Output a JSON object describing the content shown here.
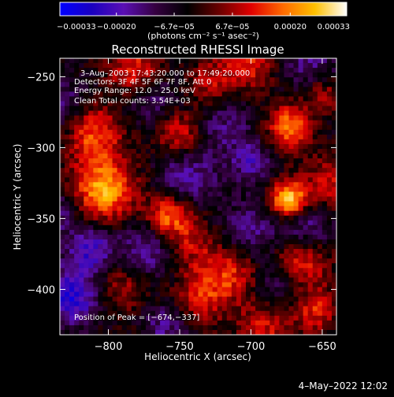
{
  "colors": {
    "background": "#000000",
    "text": "#ffffff",
    "colorbar_stops": [
      "#0000ff",
      "#1a00c0",
      "#5a0fb4",
      "#350040",
      "#000000",
      "#6a0000",
      "#e00000",
      "#ff6a00",
      "#ffc000",
      "#ffffff"
    ]
  },
  "chart_data": {
    "type": "heatmap",
    "title": "Reconstructed RHESSI Image",
    "xlabel": "Heliocentric X (arcsec)",
    "ylabel": "Heliocentric Y (arcsec)",
    "xlim": [
      -834,
      -640
    ],
    "ylim": [
      -432,
      -237
    ],
    "xticks": [
      -800,
      -750,
      -700,
      -650
    ],
    "xtick_labels": [
      "−800",
      "−750",
      "−700",
      "−650"
    ],
    "yticks": [
      -250,
      -300,
      -350,
      -400
    ],
    "ytick_labels": [
      "−250",
      "−300",
      "−350",
      "−400"
    ],
    "colorbar": {
      "range": [
        -0.00033,
        0.00033
      ],
      "ticks": [
        -0.00033,
        -0.0002,
        -6.7e-05,
        6.7e-05,
        0.0002,
        0.00033
      ],
      "tick_labels": [
        "−0.00033",
        "−0.00020",
        "−6.7e−05",
        "6.7e−05",
        "0.00020",
        "0.00033"
      ],
      "units_label": "(photons cm⁻² s⁻¹ asec⁻²)"
    },
    "info_lines": [
      "3–Aug–2003 17:43:20.000 to 17:49:20.000",
      "Detectors: 3F 4F 5F 6F 7F 8F, Att 0",
      "Energy Range: 12.0 – 25.0 keV",
      "Clean     Total counts: 3.54E+03"
    ],
    "peak_label": "Position of Peak = [−674,−337]",
    "peak": [
      -674,
      -337
    ],
    "bright_sources": [
      {
        "x": -674,
        "y": -337,
        "value": 0.00033
      },
      {
        "x": -803,
        "y": -330,
        "value": 0.00028
      },
      {
        "x": -758,
        "y": -348,
        "value": 0.00024
      },
      {
        "x": -673,
        "y": -285,
        "value": 0.00025
      },
      {
        "x": -810,
        "y": -290,
        "value": 0.0002
      },
      {
        "x": -782,
        "y": -245,
        "value": 0.00018
      },
      {
        "x": -750,
        "y": -290,
        "value": 0.00017
      },
      {
        "x": -700,
        "y": -240,
        "value": 0.00016
      },
      {
        "x": -665,
        "y": -380,
        "value": 0.0002
      },
      {
        "x": -712,
        "y": -388,
        "value": 0.00017
      },
      {
        "x": -690,
        "y": -425,
        "value": 0.00015
      },
      {
        "x": -735,
        "y": -405,
        "value": 0.00016
      },
      {
        "x": -790,
        "y": -398,
        "value": 0.00012
      },
      {
        "x": -655,
        "y": -415,
        "value": 0.00016
      },
      {
        "x": -728,
        "y": -255,
        "value": 0.00013
      },
      {
        "x": -742,
        "y": -368,
        "value": 0.00014
      },
      {
        "x": -645,
        "y": -325,
        "value": 0.00013
      },
      {
        "x": -650,
        "y": -262,
        "value": 0.00012
      }
    ],
    "negative_regions": [
      {
        "x": -825,
        "y": -405,
        "value": -0.00022
      },
      {
        "x": -812,
        "y": -372,
        "value": -0.00018
      },
      {
        "x": -770,
        "y": -372,
        "value": -0.00015
      },
      {
        "x": -745,
        "y": -322,
        "value": -0.00014
      },
      {
        "x": -700,
        "y": -310,
        "value": -0.00013
      },
      {
        "x": -660,
        "y": -358,
        "value": -0.00015
      },
      {
        "x": -700,
        "y": -360,
        "value": -0.00012
      },
      {
        "x": -680,
        "y": -398,
        "value": -0.00012
      },
      {
        "x": -835,
        "y": -270,
        "value": -0.00012
      },
      {
        "x": -770,
        "y": -265,
        "value": -0.0001
      },
      {
        "x": -720,
        "y": -285,
        "value": -0.0001
      },
      {
        "x": -660,
        "y": -240,
        "value": -0.00011
      },
      {
        "x": -760,
        "y": -425,
        "value": -0.00012
      },
      {
        "x": -835,
        "y": -345,
        "value": -0.00011
      }
    ]
  },
  "footer": {
    "timestamp": "4–May–2022 12:02"
  }
}
